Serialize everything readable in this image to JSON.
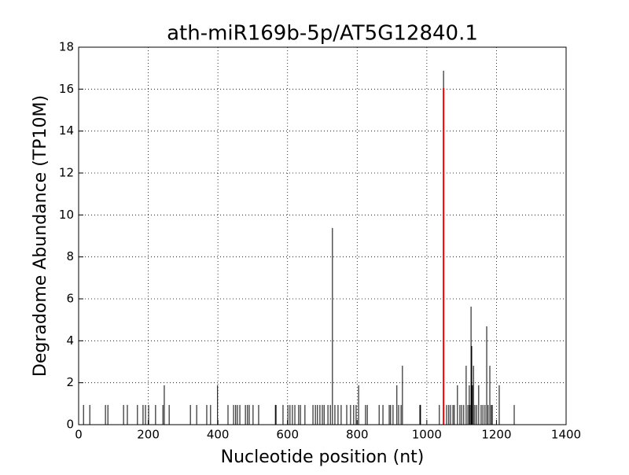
{
  "chart_data": {
    "type": "vlines",
    "title": "ath-miR169b-5p/AT5G12840.1",
    "xlabel": "Nucleotide position (nt)",
    "ylabel": "Degradome Abundance (TP10M)",
    "xlim": [
      0,
      1400
    ],
    "ylim": [
      0,
      18
    ],
    "xticks": [
      0,
      200,
      400,
      600,
      800,
      1000,
      1200,
      1400
    ],
    "yticks": [
      0,
      2,
      4,
      6,
      8,
      10,
      12,
      14,
      16,
      18
    ],
    "grid": true,
    "series": [
      {
        "color": "#000000",
        "x": [
          14,
          32,
          77,
          84,
          129,
          140,
          169,
          185,
          192,
          201,
          221,
          242,
          246,
          260,
          321,
          339,
          368,
          379,
          399,
          429,
          445,
          451,
          456,
          463,
          479,
          485,
          490,
          501,
          517,
          565,
          567,
          587,
          601,
          607,
          614,
          621,
          632,
          637,
          650,
          673,
          680,
          686,
          693,
          700,
          705,
          716,
          723,
          729,
          736,
          745,
          754,
          770,
          781,
          790,
          797,
          804,
          824,
          829,
          863,
          874,
          892,
          896,
          903,
          914,
          919,
          926,
          930,
          980,
          982,
          1036,
          1048,
          1057,
          1063,
          1068,
          1075,
          1079,
          1088,
          1095,
          1100,
          1106,
          1113,
          1118,
          1122,
          1124,
          1127,
          1129,
          1131,
          1134,
          1138,
          1143,
          1149,
          1156,
          1161,
          1167,
          1172,
          1176,
          1181,
          1185,
          1188,
          1208,
          1251
        ],
        "values": [
          0.94,
          0.94,
          0.94,
          0.94,
          0.94,
          0.94,
          0.94,
          0.94,
          0.94,
          0.94,
          0.94,
          0.94,
          1.88,
          0.94,
          0.94,
          0.94,
          0.94,
          0.94,
          1.88,
          0.94,
          0.94,
          0.94,
          0.94,
          0.94,
          0.94,
          0.94,
          0.94,
          0.94,
          0.94,
          0.94,
          0.94,
          0.94,
          0.94,
          0.94,
          0.94,
          0.94,
          0.94,
          0.94,
          0.94,
          0.94,
          0.94,
          0.94,
          0.94,
          0.94,
          0.94,
          0.94,
          0.94,
          9.38,
          0.94,
          0.94,
          0.94,
          0.94,
          0.94,
          0.94,
          0.94,
          1.88,
          0.94,
          0.94,
          0.94,
          0.94,
          0.94,
          0.94,
          0.94,
          1.88,
          0.94,
          0.94,
          2.81,
          0.94,
          0.94,
          0.94,
          16.88,
          0.94,
          0.94,
          0.94,
          0.94,
          0.94,
          1.88,
          0.94,
          0.94,
          0.94,
          2.81,
          0.94,
          1.88,
          0.94,
          5.63,
          3.75,
          1.88,
          2.81,
          0.94,
          0.94,
          1.88,
          0.94,
          0.94,
          0.94,
          4.69,
          0.94,
          2.81,
          0.94,
          0.94,
          1.88,
          0.94
        ]
      },
      {
        "color": "#ff0000",
        "x": [
          1048
        ],
        "values": [
          16.05
        ]
      }
    ]
  }
}
